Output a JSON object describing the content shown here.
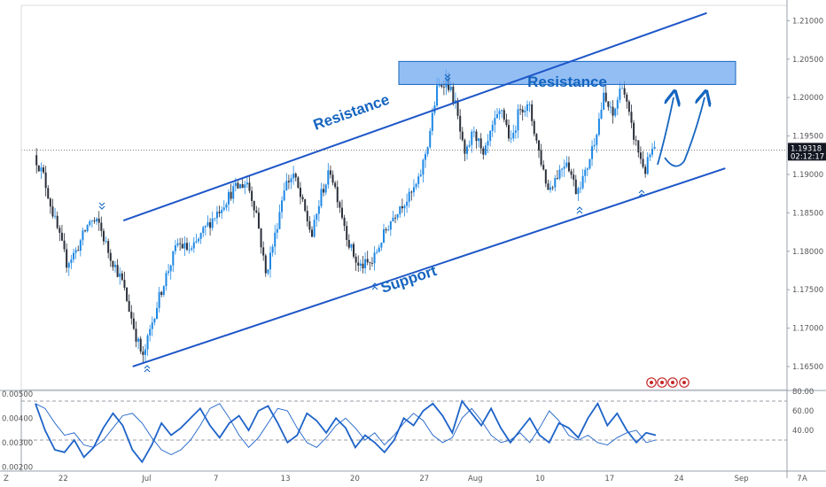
{
  "chart_data": [
    {
      "type": "candlestick",
      "title": "",
      "ylim": [
        1.162,
        1.212
      ],
      "y_ticks": [
        "1.21000",
        "1.20500",
        "1.20000",
        "1.19500",
        "1.19000",
        "1.18500",
        "1.18000",
        "1.17500",
        "1.17000",
        "1.16500"
      ],
      "x_ticks": [
        "22",
        "Jul",
        "7",
        "13",
        "20",
        "27",
        "Aug",
        "10",
        "17",
        "24",
        "Sep",
        "7"
      ],
      "x_tick_bars": [
        12,
        48,
        78,
        108,
        138,
        168,
        190,
        218,
        248,
        278,
        305,
        330
      ],
      "bar_count": 268,
      "current_price": "1.19318",
      "countdown": "02:12:17",
      "price_points": [
        [
          0,
          1.1925
        ],
        [
          4,
          1.1898
        ],
        [
          8,
          1.185
        ],
        [
          14,
          1.1785
        ],
        [
          18,
          1.18
        ],
        [
          24,
          1.184
        ],
        [
          28,
          1.1835
        ],
        [
          32,
          1.18
        ],
        [
          38,
          1.176
        ],
        [
          44,
          1.169
        ],
        [
          47,
          1.166
        ],
        [
          52,
          1.172
        ],
        [
          56,
          1.176
        ],
        [
          62,
          1.181
        ],
        [
          68,
          1.18
        ],
        [
          74,
          1.183
        ],
        [
          80,
          1.1855
        ],
        [
          86,
          1.188
        ],
        [
          92,
          1.189
        ],
        [
          96,
          1.185
        ],
        [
          100,
          1.177
        ],
        [
          104,
          1.182
        ],
        [
          108,
          1.1885
        ],
        [
          112,
          1.19
        ],
        [
          116,
          1.186
        ],
        [
          120,
          1.182
        ],
        [
          124,
          1.1875
        ],
        [
          128,
          1.1905
        ],
        [
          132,
          1.186
        ],
        [
          136,
          1.181
        ],
        [
          140,
          1.178
        ],
        [
          146,
          1.1785
        ],
        [
          150,
          1.1815
        ],
        [
          154,
          1.184
        ],
        [
          158,
          1.186
        ],
        [
          162,
          1.187
        ],
        [
          166,
          1.189
        ],
        [
          170,
          1.194
        ],
        [
          174,
          1.201
        ],
        [
          178,
          1.2025
        ],
        [
          182,
          1.199
        ],
        [
          186,
          1.192
        ],
        [
          190,
          1.196
        ],
        [
          194,
          1.192
        ],
        [
          198,
          1.196
        ],
        [
          202,
          1.1985
        ],
        [
          206,
          1.194
        ],
        [
          210,
          1.199
        ],
        [
          214,
          1.1985
        ],
        [
          218,
          1.193
        ],
        [
          222,
          1.188
        ],
        [
          226,
          1.19
        ],
        [
          230,
          1.192
        ],
        [
          234,
          1.188
        ],
        [
          238,
          1.19
        ],
        [
          242,
          1.1945
        ],
        [
          246,
          1.2
        ],
        [
          250,
          1.1975
        ],
        [
          254,
          1.202
        ],
        [
          258,
          1.196
        ],
        [
          262,
          1.192
        ],
        [
          264,
          1.1905
        ],
        [
          266,
          1.1925
        ],
        [
          268,
          1.1932
        ]
      ],
      "channel": {
        "resistance": [
          [
            38,
            1.184
          ],
          [
            290,
            1.211
          ]
        ],
        "support": [
          [
            42,
            1.165
          ],
          [
            298,
            1.1908
          ]
        ]
      },
      "resistance_zone": [
        1.2017,
        1.2047
      ],
      "labels": {
        "resistance_line": "Resistance",
        "resistance_zone": "Resistance",
        "support_line": "Support"
      }
    },
    {
      "type": "line",
      "panel": "oscillator",
      "ylim_left": [
        0.0019,
        0.0051
      ],
      "ylim_right": [
        0,
        80
      ],
      "left_ticks": [
        "0.00500",
        "0.00400",
        "0.00300",
        "0.00200"
      ],
      "right_ticks": [
        "80.00",
        "60.00",
        "40.00"
      ],
      "dashed_levels": [
        70,
        30
      ],
      "series": [
        {
          "role": "thin",
          "values": [
            0.0046,
            0.0044,
            0.0038,
            0.0033,
            0.0034,
            0.0029,
            0.0028,
            0.0031,
            0.0036,
            0.0041,
            0.0042,
            0.0038,
            0.0032,
            0.0027,
            0.0025,
            0.0027,
            0.0031,
            0.0037,
            0.0044,
            0.0046,
            0.004,
            0.0033,
            0.0028,
            0.0032,
            0.0038,
            0.0044,
            0.0043,
            0.0036,
            0.003,
            0.0028,
            0.0032,
            0.0037,
            0.004,
            0.0036,
            0.0031,
            0.0034,
            0.0029,
            0.0033,
            0.0038,
            0.0042,
            0.0039,
            0.0033,
            0.003,
            0.0032,
            0.004,
            0.0044,
            0.0039,
            0.0033,
            0.003,
            0.0031,
            0.0034,
            0.003,
            0.0036,
            0.0043,
            0.0039,
            0.0033,
            0.0031,
            0.0033,
            0.003,
            0.0029,
            0.0032,
            0.0034,
            0.0035,
            0.003,
            0.0031
          ]
        },
        {
          "role": "thick",
          "values": [
            0.0046,
            0.0035,
            0.0027,
            0.0026,
            0.0031,
            0.0024,
            0.0028,
            0.0036,
            0.0042,
            0.0037,
            0.0027,
            0.0022,
            0.0029,
            0.0038,
            0.0033,
            0.0036,
            0.004,
            0.0044,
            0.0037,
            0.0032,
            0.0038,
            0.0041,
            0.0035,
            0.0043,
            0.0045,
            0.0038,
            0.003,
            0.0033,
            0.0042,
            0.0039,
            0.0034,
            0.004,
            0.0036,
            0.0028,
            0.0033,
            0.003,
            0.0026,
            0.0031,
            0.004,
            0.0037,
            0.0043,
            0.0046,
            0.0041,
            0.0034,
            0.0047,
            0.0042,
            0.0037,
            0.0044,
            0.0036,
            0.003,
            0.0035,
            0.004,
            0.0033,
            0.003,
            0.0038,
            0.0036,
            0.0032,
            0.004,
            0.0046,
            0.0037,
            0.0042,
            0.0035,
            0.003,
            0.0034,
            0.0033
          ]
        }
      ]
    }
  ]
}
